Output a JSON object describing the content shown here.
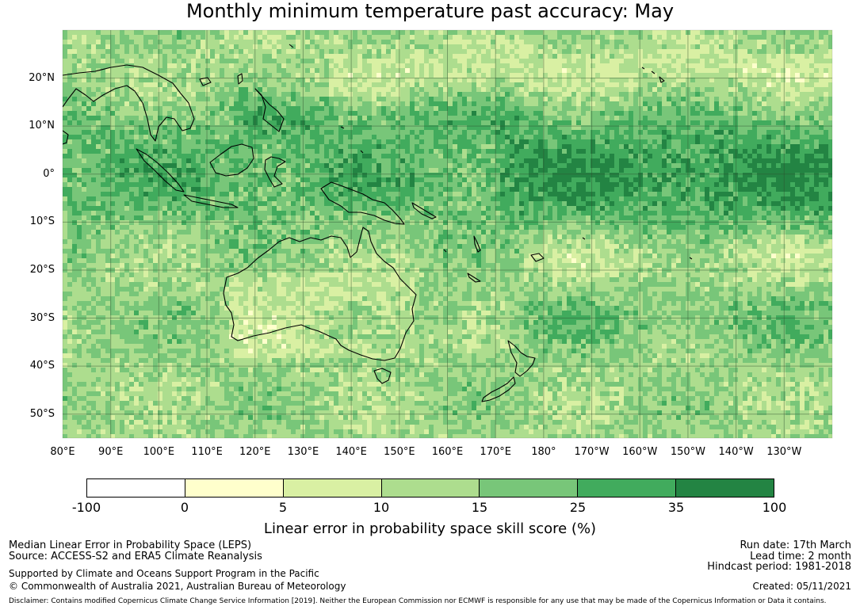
{
  "title": "Monthly minimum temperature past accuracy: May",
  "map": {
    "lat_labels": [
      "20°N",
      "10°N",
      "0°",
      "10°S",
      "20°S",
      "30°S",
      "40°S",
      "50°S"
    ],
    "lon_labels": [
      "80°E",
      "90°E",
      "100°E",
      "110°E",
      "120°E",
      "130°E",
      "140°E",
      "150°E",
      "160°E",
      "170°E",
      "180°",
      "170°W",
      "160°W",
      "150°W",
      "140°W",
      "130°W"
    ],
    "extent_lon": [
      80,
      240
    ],
    "extent_lat": [
      -55,
      30
    ]
  },
  "colorbar": {
    "ticks": [
      "-100",
      "0",
      "5",
      "10",
      "15",
      "25",
      "35",
      "100"
    ],
    "colors": [
      "#ffffff",
      "#ffffcc",
      "#d9f0a3",
      "#addd8e",
      "#78c679",
      "#41ab5d",
      "#238443"
    ],
    "label": "Linear error in probability space skill score (%)"
  },
  "footer": {
    "left_line1": "Median Linear Error in Probability Space (LEPS)",
    "left_line2": "Source: ACCESS-S2 and ERA5 Climate Reanalysis",
    "left_line3": "Supported by Climate and Oceans Support Program in the Pacific",
    "left_line4": "© Commonwealth of Australia 2021, Australian Bureau of Meteorology",
    "right_line1": "Run date: 17th March",
    "right_line2": "Lead time: 2 month",
    "right_line3": "Hindcast period: 1981-2018",
    "right_line4": "Created: 05/11/2021",
    "disclaimer": "Disclaimer: Contains modified Copernicus Climate Change Service Information [2019]. Neither the European Commission nor ECMWF is responsible for any use that may be made of the Copernicus Information or Data it contains."
  }
}
